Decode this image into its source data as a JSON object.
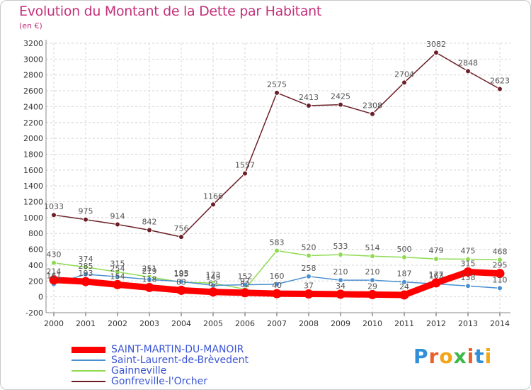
{
  "header": {
    "title": "Evolution du Montant de la Dette par Habitant",
    "unit": "(en €)"
  },
  "brand": {
    "letters": [
      "P",
      "r",
      "o",
      "x",
      "i",
      "t",
      "i"
    ],
    "colors": [
      "#2f8fd8",
      "#e8612c",
      "#f2a516",
      "#3db84a",
      "#e8612c",
      "#2f8fd8",
      "#f2a516"
    ]
  },
  "chart_data": {
    "type": "line",
    "title": "Evolution du Montant de la Dette par Habitant",
    "x": [
      "2000",
      "2001",
      "2002",
      "2003",
      "2004",
      "2005",
      "2006",
      "2007",
      "2008",
      "2009",
      "2010",
      "2011",
      "2012",
      "2013",
      "2014"
    ],
    "ylim": [
      -200,
      3200
    ],
    "yticks": [
      -200,
      0,
      200,
      400,
      600,
      800,
      1000,
      1200,
      1400,
      1600,
      1800,
      2000,
      2200,
      2400,
      2600,
      2800,
      3000,
      3200
    ],
    "grid": true,
    "legend_position": "bottom-left",
    "series": [
      {
        "name": "SAINT-MARTIN-DU-MANOIR",
        "color": "#ff0000",
        "values": [
          214,
          193,
          154,
          118,
          83,
          62,
          52,
          40,
          37,
          34,
          29,
          24,
          177,
          315,
          295
        ],
        "labels": [
          "214",
          "193",
          "154",
          "118",
          "83",
          "62",
          "52",
          "40",
          "37",
          "34",
          "29",
          "24",
          "177",
          "315",
          "295"
        ]
      },
      {
        "name": "Saint-Laurent-de-Brèvedent",
        "color": "#4a8fd0",
        "values": [
          161,
          285,
          254,
          219,
          193,
          145,
          152,
          160,
          258,
          210,
          210,
          187,
          163,
          138,
          110
        ],
        "labels": [
          "161",
          "285",
          "254",
          "219",
          "193",
          "145",
          "152",
          "160",
          "258",
          "210",
          "210",
          "187",
          "163",
          "138",
          "110"
        ]
      },
      {
        "name": "Gainneville",
        "color": "#8edb52",
        "values": [
          430,
          374,
          315,
          251,
          185,
          173,
          97,
          583,
          520,
          533,
          514,
          500,
          479,
          475,
          468
        ],
        "labels": [
          "430",
          "374",
          "315",
          "251",
          "185",
          "173",
          "97",
          "583",
          "520",
          "533",
          "514",
          "500",
          "479",
          "475",
          "468"
        ]
      },
      {
        "name": "Gonfreville-l'Orcher",
        "color": "#6b1e26",
        "values": [
          1033,
          975,
          914,
          842,
          756,
          1166,
          1557,
          2575,
          2413,
          2425,
          2308,
          2704,
          3082,
          2848,
          2623
        ],
        "labels": [
          "1033",
          "975",
          "914",
          "842",
          "756",
          "1166",
          "1557",
          "2575",
          "2413",
          "2425",
          "2308",
          "2704",
          "3082",
          "2848",
          "2623"
        ]
      }
    ]
  }
}
